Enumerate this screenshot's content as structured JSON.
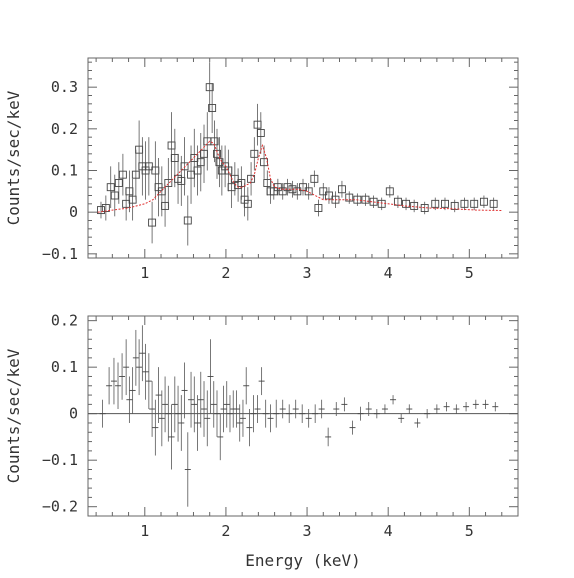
{
  "chart_data": [
    {
      "type": "scatter",
      "title": "",
      "xlabel": "",
      "ylabel": "Counts/sec/keV",
      "xlim": [
        0.3,
        5.6
      ],
      "ylim": [
        -0.11,
        0.37
      ],
      "xticks": [
        "1",
        "2",
        "3",
        "4",
        "5"
      ],
      "yticks": [
        "−0.1",
        "0",
        "0.1",
        "0.2",
        "0.3"
      ],
      "ytick_values": [
        -0.1,
        0,
        0.1,
        0.2,
        0.3
      ],
      "xtick_values": [
        1,
        2,
        3,
        4,
        5
      ],
      "marker": "square-with-error-bars",
      "model_color": "#e03030",
      "series": [
        {
          "kind": "data",
          "x": [
            0.46,
            0.52,
            0.58,
            0.63,
            0.68,
            0.73,
            0.77,
            0.81,
            0.85,
            0.89,
            0.93,
            0.97,
            1.01,
            1.05,
            1.09,
            1.13,
            1.17,
            1.21,
            1.25,
            1.29,
            1.33,
            1.37,
            1.41,
            1.45,
            1.49,
            1.53,
            1.57,
            1.61,
            1.65,
            1.69,
            1.73,
            1.77,
            1.8,
            1.83,
            1.86,
            1.89,
            1.92,
            1.95,
            1.99,
            2.03,
            2.07,
            2.11,
            2.15,
            2.19,
            2.23,
            2.27,
            2.31,
            2.35,
            2.39,
            2.43,
            2.47,
            2.51,
            2.55,
            2.59,
            2.64,
            2.7,
            2.76,
            2.82,
            2.88,
            2.95,
            3.02,
            3.09,
            3.14,
            3.2,
            3.27,
            3.35,
            3.43,
            3.52,
            3.62,
            3.72,
            3.82,
            3.92,
            4.02,
            4.12,
            4.22,
            4.32,
            4.45,
            4.58,
            4.7,
            4.82,
            4.94,
            5.06,
            5.18,
            5.3
          ],
          "y": [
            0.005,
            0.01,
            0.06,
            0.04,
            0.07,
            0.09,
            0.02,
            0.05,
            0.03,
            0.09,
            0.15,
            0.11,
            0.1,
            0.11,
            -0.025,
            0.1,
            0.06,
            0.05,
            0.015,
            0.07,
            0.16,
            0.13,
            0.08,
            0.075,
            0.11,
            -0.02,
            0.09,
            0.13,
            0.1,
            0.12,
            0.14,
            0.17,
            0.3,
            0.25,
            0.17,
            0.14,
            0.12,
            0.1,
            0.11,
            0.1,
            0.06,
            0.08,
            0.065,
            0.07,
            0.03,
            0.02,
            0.08,
            0.14,
            0.21,
            0.19,
            0.12,
            0.07,
            0.05,
            0.05,
            0.06,
            0.05,
            0.06,
            0.055,
            0.05,
            0.06,
            0.05,
            0.08,
            0.01,
            0.05,
            0.04,
            0.03,
            0.055,
            0.035,
            0.03,
            0.03,
            0.025,
            0.02,
            0.05,
            0.025,
            0.02,
            0.015,
            0.01,
            0.02,
            0.02,
            0.015,
            0.02,
            0.02,
            0.025,
            0.02
          ],
          "yerr": [
            0.02,
            0.03,
            0.05,
            0.05,
            0.05,
            0.05,
            0.04,
            0.05,
            0.05,
            0.06,
            0.07,
            0.07,
            0.07,
            0.07,
            0.05,
            0.07,
            0.07,
            0.06,
            0.05,
            0.06,
            0.08,
            0.07,
            0.06,
            0.06,
            0.07,
            0.06,
            0.07,
            0.07,
            0.06,
            0.07,
            0.07,
            0.07,
            0.06,
            0.06,
            0.05,
            0.06,
            0.06,
            0.06,
            0.05,
            0.05,
            0.05,
            0.04,
            0.04,
            0.04,
            0.04,
            0.04,
            0.04,
            0.04,
            0.05,
            0.05,
            0.04,
            0.03,
            0.03,
            0.02,
            0.02,
            0.02,
            0.02,
            0.02,
            0.02,
            0.02,
            0.02,
            0.02,
            0.02,
            0.02,
            0.02,
            0.02,
            0.02,
            0.015,
            0.015,
            0.015,
            0.015,
            0.015,
            0.015,
            0.015,
            0.015,
            0.015,
            0.015,
            0.015,
            0.015,
            0.015,
            0.015,
            0.015,
            0.015,
            0.015
          ]
        },
        {
          "kind": "model",
          "x": [
            0.42,
            0.6,
            0.8,
            1.0,
            1.1,
            1.2,
            1.3,
            1.4,
            1.5,
            1.6,
            1.7,
            1.75,
            1.8,
            1.85,
            1.9,
            1.95,
            2.0,
            2.05,
            2.1,
            2.15,
            2.2,
            2.25,
            2.3,
            2.35,
            2.4,
            2.45,
            2.5,
            2.55,
            2.6,
            2.7,
            2.8,
            2.9,
            3.0,
            3.1,
            3.2,
            3.3,
            3.4,
            3.6,
            3.8,
            4.0,
            4.2,
            4.5,
            4.8,
            5.1,
            5.4
          ],
          "y": [
            0.0,
            0.005,
            0.01,
            0.02,
            0.03,
            0.05,
            0.07,
            0.09,
            0.11,
            0.13,
            0.15,
            0.16,
            0.17,
            0.165,
            0.14,
            0.12,
            0.11,
            0.09,
            0.07,
            0.06,
            0.06,
            0.065,
            0.07,
            0.09,
            0.13,
            0.16,
            0.13,
            0.08,
            0.06,
            0.055,
            0.055,
            0.055,
            0.05,
            0.04,
            0.03,
            0.03,
            0.03,
            0.03,
            0.025,
            0.02,
            0.015,
            0.01,
            0.008,
            0.005,
            0.004
          ]
        }
      ]
    },
    {
      "type": "scatter",
      "title": "",
      "xlabel": "Energy (keV)",
      "ylabel": "Counts/sec/keV",
      "xlim": [
        0.3,
        5.6
      ],
      "ylim": [
        -0.22,
        0.21
      ],
      "xticks": [
        "1",
        "2",
        "3",
        "4",
        "5"
      ],
      "yticks": [
        "−0.2",
        "−0.1",
        "0",
        "0.1",
        "0.2"
      ],
      "ytick_values": [
        -0.2,
        -0.1,
        0,
        0.1,
        0.2
      ],
      "xtick_values": [
        1,
        2,
        3,
        4,
        5
      ],
      "marker": "cross-with-error-bars",
      "series": [
        {
          "kind": "residuals",
          "x": [
            0.48,
            0.56,
            0.62,
            0.67,
            0.72,
            0.77,
            0.81,
            0.85,
            0.89,
            0.93,
            0.97,
            1.01,
            1.05,
            1.09,
            1.13,
            1.17,
            1.21,
            1.25,
            1.29,
            1.33,
            1.37,
            1.41,
            1.45,
            1.49,
            1.53,
            1.57,
            1.61,
            1.65,
            1.69,
            1.73,
            1.77,
            1.81,
            1.85,
            1.89,
            1.93,
            1.97,
            2.01,
            2.05,
            2.09,
            2.13,
            2.17,
            2.21,
            2.25,
            2.29,
            2.34,
            2.39,
            2.44,
            2.49,
            2.55,
            2.62,
            2.7,
            2.78,
            2.86,
            2.94,
            3.02,
            3.1,
            3.18,
            3.26,
            3.36,
            3.46,
            3.56,
            3.66,
            3.76,
            3.86,
            3.96,
            4.06,
            4.16,
            4.26,
            4.36,
            4.48,
            4.6,
            4.72,
            4.84,
            4.96,
            5.08,
            5.2,
            5.32
          ],
          "y": [
            0.0,
            0.06,
            0.07,
            0.06,
            0.08,
            0.1,
            0.03,
            0.05,
            0.12,
            0.1,
            0.13,
            0.09,
            0.07,
            0.01,
            -0.03,
            0.04,
            -0.01,
            0.02,
            0.0,
            -0.05,
            0.02,
            0.0,
            -0.02,
            0.05,
            -0.12,
            0.03,
            0.02,
            -0.02,
            0.03,
            0.01,
            -0.01,
            0.08,
            0.02,
            0.0,
            -0.05,
            0.01,
            0.02,
            0.0,
            0.01,
            0.01,
            -0.02,
            -0.01,
            0.06,
            -0.03,
            0.0,
            0.01,
            0.07,
            0.0,
            -0.01,
            0.0,
            0.01,
            0.0,
            0.01,
            0.0,
            -0.01,
            0.0,
            0.01,
            -0.05,
            0.01,
            0.02,
            -0.03,
            0.0,
            0.01,
            0.0,
            0.01,
            0.03,
            -0.01,
            0.01,
            -0.02,
            0.0,
            0.01,
            0.015,
            0.01,
            0.015,
            0.02,
            0.02,
            0.015
          ],
          "yerr": [
            0.03,
            0.04,
            0.05,
            0.05,
            0.05,
            0.06,
            0.05,
            0.05,
            0.06,
            0.06,
            0.06,
            0.06,
            0.06,
            0.06,
            0.06,
            0.06,
            0.06,
            0.06,
            0.06,
            0.07,
            0.06,
            0.06,
            0.06,
            0.06,
            0.08,
            0.06,
            0.06,
            0.06,
            0.06,
            0.06,
            0.06,
            0.08,
            0.05,
            0.05,
            0.05,
            0.05,
            0.05,
            0.04,
            0.04,
            0.04,
            0.04,
            0.04,
            0.04,
            0.04,
            0.04,
            0.03,
            0.03,
            0.03,
            0.03,
            0.03,
            0.02,
            0.02,
            0.02,
            0.02,
            0.02,
            0.02,
            0.02,
            0.02,
            0.015,
            0.015,
            0.015,
            0.015,
            0.015,
            0.01,
            0.01,
            0.01,
            0.01,
            0.01,
            0.01,
            0.01,
            0.01,
            0.01,
            0.01,
            0.01,
            0.01,
            0.01,
            0.01
          ]
        }
      ]
    }
  ]
}
